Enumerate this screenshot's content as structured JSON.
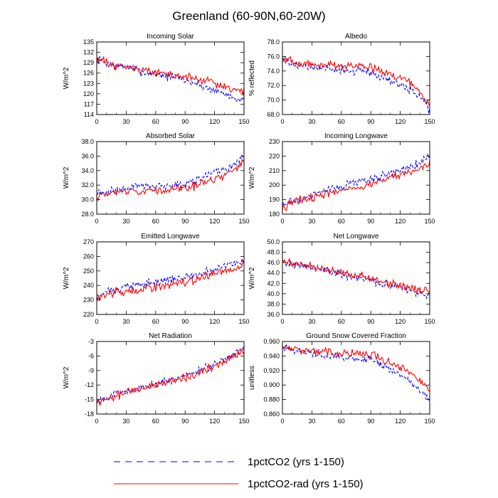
{
  "figure": {
    "title": "Greenland (60-90N,60-20W)",
    "legend": [
      {
        "label": "1pctCO2 (yrs 1-150)",
        "color": "#0000ff",
        "dash": "dashed"
      },
      {
        "label": "1pctCO2-rad (yrs 1-150)",
        "color": "#ff0000",
        "dash": "solid"
      }
    ]
  },
  "chart_data": [
    {
      "type": "line",
      "title": "Incoming Solar",
      "xlabel": "",
      "ylabel": "W/m^2",
      "xlim": [
        0,
        150
      ],
      "xticks": [
        0,
        30,
        60,
        90,
        120,
        150
      ],
      "ylim": [
        114,
        135
      ],
      "yticks": [
        "114",
        "117",
        "120",
        "123",
        "126",
        "129",
        "132",
        "135"
      ],
      "series": [
        {
          "name": "1pctCO2 (yrs 1-150)",
          "color": "#0000ff",
          "dash": "dashed",
          "x": [
            0,
            10,
            20,
            30,
            40,
            50,
            60,
            70,
            80,
            90,
            100,
            110,
            120,
            130,
            140,
            150
          ],
          "values": [
            130,
            129,
            128,
            128,
            127,
            126,
            126,
            125,
            125,
            124,
            123,
            122,
            121,
            120,
            119,
            118
          ]
        },
        {
          "name": "1pctCO2-rad (yrs 1-150)",
          "color": "#ff0000",
          "dash": "solid",
          "x": [
            0,
            10,
            20,
            30,
            40,
            50,
            60,
            70,
            80,
            90,
            100,
            110,
            120,
            130,
            140,
            150
          ],
          "values": [
            130,
            129,
            128,
            128,
            127,
            127,
            126,
            126,
            125,
            125,
            124,
            124,
            123,
            122,
            121,
            121
          ]
        }
      ]
    },
    {
      "type": "line",
      "title": "Albedo",
      "xlabel": "",
      "ylabel": "% reflected",
      "xlim": [
        0,
        150
      ],
      "xticks": [
        0,
        30,
        60,
        90,
        120,
        150
      ],
      "ylim": [
        68,
        78
      ],
      "yticks": [
        "68.0",
        "70.0",
        "72.0",
        "74.0",
        "76.0",
        "78.0"
      ],
      "series": [
        {
          "name": "1pctCO2 (yrs 1-150)",
          "color": "#0000ff",
          "dash": "dashed",
          "x": [
            0,
            10,
            20,
            30,
            40,
            50,
            60,
            70,
            80,
            90,
            100,
            110,
            120,
            130,
            140,
            150
          ],
          "values": [
            75.5,
            75,
            74.6,
            74.5,
            74.3,
            74.2,
            74.1,
            74,
            74,
            73.8,
            73.2,
            72.7,
            72.1,
            71.5,
            70.5,
            68.8
          ]
        },
        {
          "name": "1pctCO2-rad (yrs 1-150)",
          "color": "#ff0000",
          "dash": "solid",
          "x": [
            0,
            10,
            20,
            30,
            40,
            50,
            60,
            70,
            80,
            90,
            100,
            110,
            120,
            130,
            140,
            150
          ],
          "values": [
            75.8,
            75.2,
            75,
            74.9,
            74.8,
            74.8,
            74.7,
            74.7,
            74.6,
            74.6,
            74.1,
            73.6,
            73,
            72.3,
            71.3,
            69.2
          ]
        }
      ]
    },
    {
      "type": "line",
      "title": "Absorbed Solar",
      "xlabel": "",
      "ylabel": "W/m^2",
      "xlim": [
        0,
        150
      ],
      "xticks": [
        0,
        30,
        60,
        90,
        120,
        150
      ],
      "ylim": [
        28,
        38
      ],
      "yticks": [
        "28.0",
        "30.0",
        "32.0",
        "34.0",
        "36.0",
        "38.0"
      ],
      "series": [
        {
          "name": "1pctCO2 (yrs 1-150)",
          "color": "#0000ff",
          "dash": "dashed",
          "x": [
            0,
            10,
            20,
            30,
            40,
            50,
            60,
            70,
            80,
            90,
            100,
            110,
            120,
            130,
            140,
            150
          ],
          "values": [
            30.8,
            31,
            31.4,
            31.6,
            31.8,
            31.8,
            31.9,
            32,
            32,
            32.2,
            32.6,
            33.2,
            33.6,
            34.1,
            35,
            36
          ]
        },
        {
          "name": "1pctCO2-rad (yrs 1-150)",
          "color": "#ff0000",
          "dash": "solid",
          "x": [
            0,
            10,
            20,
            30,
            40,
            50,
            60,
            70,
            80,
            90,
            100,
            110,
            120,
            130,
            140,
            150
          ],
          "values": [
            30.5,
            30.8,
            31,
            31.1,
            31.2,
            31.3,
            31.4,
            31.4,
            31.5,
            31.6,
            31.9,
            32.4,
            32.8,
            33.3,
            34.2,
            35.2
          ]
        }
      ]
    },
    {
      "type": "line",
      "title": "Incoming Longwave",
      "xlabel": "",
      "ylabel": "W/m^2",
      "xlim": [
        0,
        150
      ],
      "xticks": [
        0,
        30,
        60,
        90,
        120,
        150
      ],
      "ylim": [
        180,
        230
      ],
      "yticks": [
        "180",
        "190",
        "200",
        "210",
        "220",
        "230"
      ],
      "series": [
        {
          "name": "1pctCO2 (yrs 1-150)",
          "color": "#0000ff",
          "dash": "dashed",
          "x": [
            0,
            10,
            20,
            30,
            40,
            50,
            60,
            70,
            80,
            90,
            100,
            110,
            120,
            130,
            140,
            150
          ],
          "values": [
            186,
            189,
            191,
            193,
            195,
            197,
            199,
            201,
            203,
            204,
            206,
            208,
            210,
            213,
            216,
            219
          ]
        },
        {
          "name": "1pctCO2-rad (yrs 1-150)",
          "color": "#ff0000",
          "dash": "solid",
          "x": [
            0,
            10,
            20,
            30,
            40,
            50,
            60,
            70,
            80,
            90,
            100,
            110,
            120,
            130,
            140,
            150
          ],
          "values": [
            185,
            188,
            190,
            191,
            193,
            195,
            196,
            198,
            199,
            201,
            203,
            205,
            207,
            209,
            212,
            215
          ]
        }
      ]
    },
    {
      "type": "line",
      "title": "Emitted Longwave",
      "xlabel": "",
      "ylabel": "W/m^2",
      "xlim": [
        0,
        150
      ],
      "xticks": [
        0,
        30,
        60,
        90,
        120,
        150
      ],
      "ylim": [
        220,
        270
      ],
      "yticks": [
        "220",
        "230",
        "240",
        "250",
        "260",
        "270"
      ],
      "series": [
        {
          "name": "1pctCO2 (yrs 1-150)",
          "color": "#0000ff",
          "dash": "dashed",
          "x": [
            0,
            10,
            20,
            30,
            40,
            50,
            60,
            70,
            80,
            90,
            100,
            110,
            120,
            130,
            140,
            150
          ],
          "values": [
            232,
            235,
            237,
            239,
            240,
            241,
            242,
            243,
            244,
            246,
            247,
            249,
            251,
            253,
            255,
            258
          ]
        },
        {
          "name": "1pctCO2-rad (yrs 1-150)",
          "color": "#ff0000",
          "dash": "solid",
          "x": [
            0,
            10,
            20,
            30,
            40,
            50,
            60,
            70,
            80,
            90,
            100,
            110,
            120,
            130,
            140,
            150
          ],
          "values": [
            231,
            234,
            235,
            236,
            237,
            238,
            239,
            240,
            241,
            242,
            244,
            246,
            248,
            250,
            252,
            255
          ]
        }
      ]
    },
    {
      "type": "line",
      "title": "Net Longwave",
      "xlabel": "",
      "ylabel": "W/m^2",
      "xlim": [
        0,
        150
      ],
      "xticks": [
        0,
        30,
        60,
        90,
        120,
        150
      ],
      "ylim": [
        36,
        50
      ],
      "yticks": [
        "36.0",
        "38.0",
        "40.0",
        "42.0",
        "44.0",
        "46.0",
        "48.0",
        "50.0"
      ],
      "series": [
        {
          "name": "1pctCO2 (yrs 1-150)",
          "color": "#0000ff",
          "dash": "dashed",
          "x": [
            0,
            10,
            20,
            30,
            40,
            50,
            60,
            70,
            80,
            90,
            100,
            110,
            120,
            130,
            140,
            150
          ],
          "values": [
            46,
            45.6,
            45.3,
            45,
            44.6,
            44.2,
            43.7,
            43.3,
            43,
            42.5,
            42,
            41.6,
            41.2,
            40.6,
            40.1,
            39.7
          ]
        },
        {
          "name": "1pctCO2-rad (yrs 1-150)",
          "color": "#ff0000",
          "dash": "solid",
          "x": [
            0,
            10,
            20,
            30,
            40,
            50,
            60,
            70,
            80,
            90,
            100,
            110,
            120,
            130,
            140,
            150
          ],
          "values": [
            46.1,
            45.8,
            45.4,
            45.2,
            44.8,
            44.5,
            44.1,
            43.7,
            43.4,
            43,
            42.5,
            42,
            41.6,
            41.1,
            40.6,
            40.3
          ]
        }
      ]
    },
    {
      "type": "line",
      "title": "Net Radiation",
      "xlabel": "",
      "ylabel": "W/m^2",
      "xlim": [
        0,
        150
      ],
      "xticks": [
        0,
        30,
        60,
        90,
        120,
        150
      ],
      "ylim": [
        -18,
        -3
      ],
      "yticks": [
        "-18",
        "-15",
        "-12",
        "-9",
        "-6",
        "-3"
      ],
      "series": [
        {
          "name": "1pctCO2 (yrs 1-150)",
          "color": "#0000ff",
          "dash": "dashed",
          "x": [
            0,
            10,
            20,
            30,
            40,
            50,
            60,
            70,
            80,
            90,
            100,
            110,
            120,
            130,
            140,
            150
          ],
          "values": [
            -15.2,
            -14.6,
            -14,
            -13.4,
            -12.8,
            -12.3,
            -11.8,
            -11.3,
            -10.8,
            -10.2,
            -9.4,
            -8.6,
            -7.8,
            -6.8,
            -5.6,
            -4.4
          ]
        },
        {
          "name": "1pctCO2-rad (yrs 1-150)",
          "color": "#ff0000",
          "dash": "solid",
          "x": [
            0,
            10,
            20,
            30,
            40,
            50,
            60,
            70,
            80,
            90,
            100,
            110,
            120,
            130,
            140,
            150
          ],
          "values": [
            -15.6,
            -15,
            -14.3,
            -13.6,
            -13,
            -12.5,
            -12,
            -11.5,
            -11,
            -10.5,
            -9.8,
            -9,
            -8.2,
            -7.2,
            -6,
            -4.9
          ]
        }
      ]
    },
    {
      "type": "line",
      "title": "Ground Snow Covered Fraction",
      "xlabel": "",
      "ylabel": "unitless",
      "xlim": [
        0,
        150
      ],
      "xticks": [
        0,
        30,
        60,
        90,
        120,
        150
      ],
      "ylim": [
        0.86,
        0.96
      ],
      "yticks": [
        "0.860",
        "0.880",
        "0.900",
        "0.920",
        "0.940",
        "0.960"
      ],
      "series": [
        {
          "name": "1pctCO2 (yrs 1-150)",
          "color": "#0000ff",
          "dash": "dashed",
          "x": [
            0,
            10,
            20,
            30,
            40,
            50,
            60,
            70,
            80,
            90,
            100,
            110,
            120,
            130,
            140,
            150
          ],
          "values": [
            0.953,
            0.949,
            0.946,
            0.944,
            0.942,
            0.94,
            0.939,
            0.938,
            0.937,
            0.935,
            0.929,
            0.921,
            0.913,
            0.904,
            0.894,
            0.882
          ]
        },
        {
          "name": "1pctCO2-rad (yrs 1-150)",
          "color": "#ff0000",
          "dash": "solid",
          "x": [
            0,
            10,
            20,
            30,
            40,
            50,
            60,
            70,
            80,
            90,
            100,
            110,
            120,
            130,
            140,
            150
          ],
          "values": [
            0.954,
            0.951,
            0.949,
            0.947,
            0.946,
            0.945,
            0.944,
            0.943,
            0.943,
            0.942,
            0.937,
            0.931,
            0.925,
            0.917,
            0.907,
            0.892
          ]
        }
      ]
    }
  ]
}
